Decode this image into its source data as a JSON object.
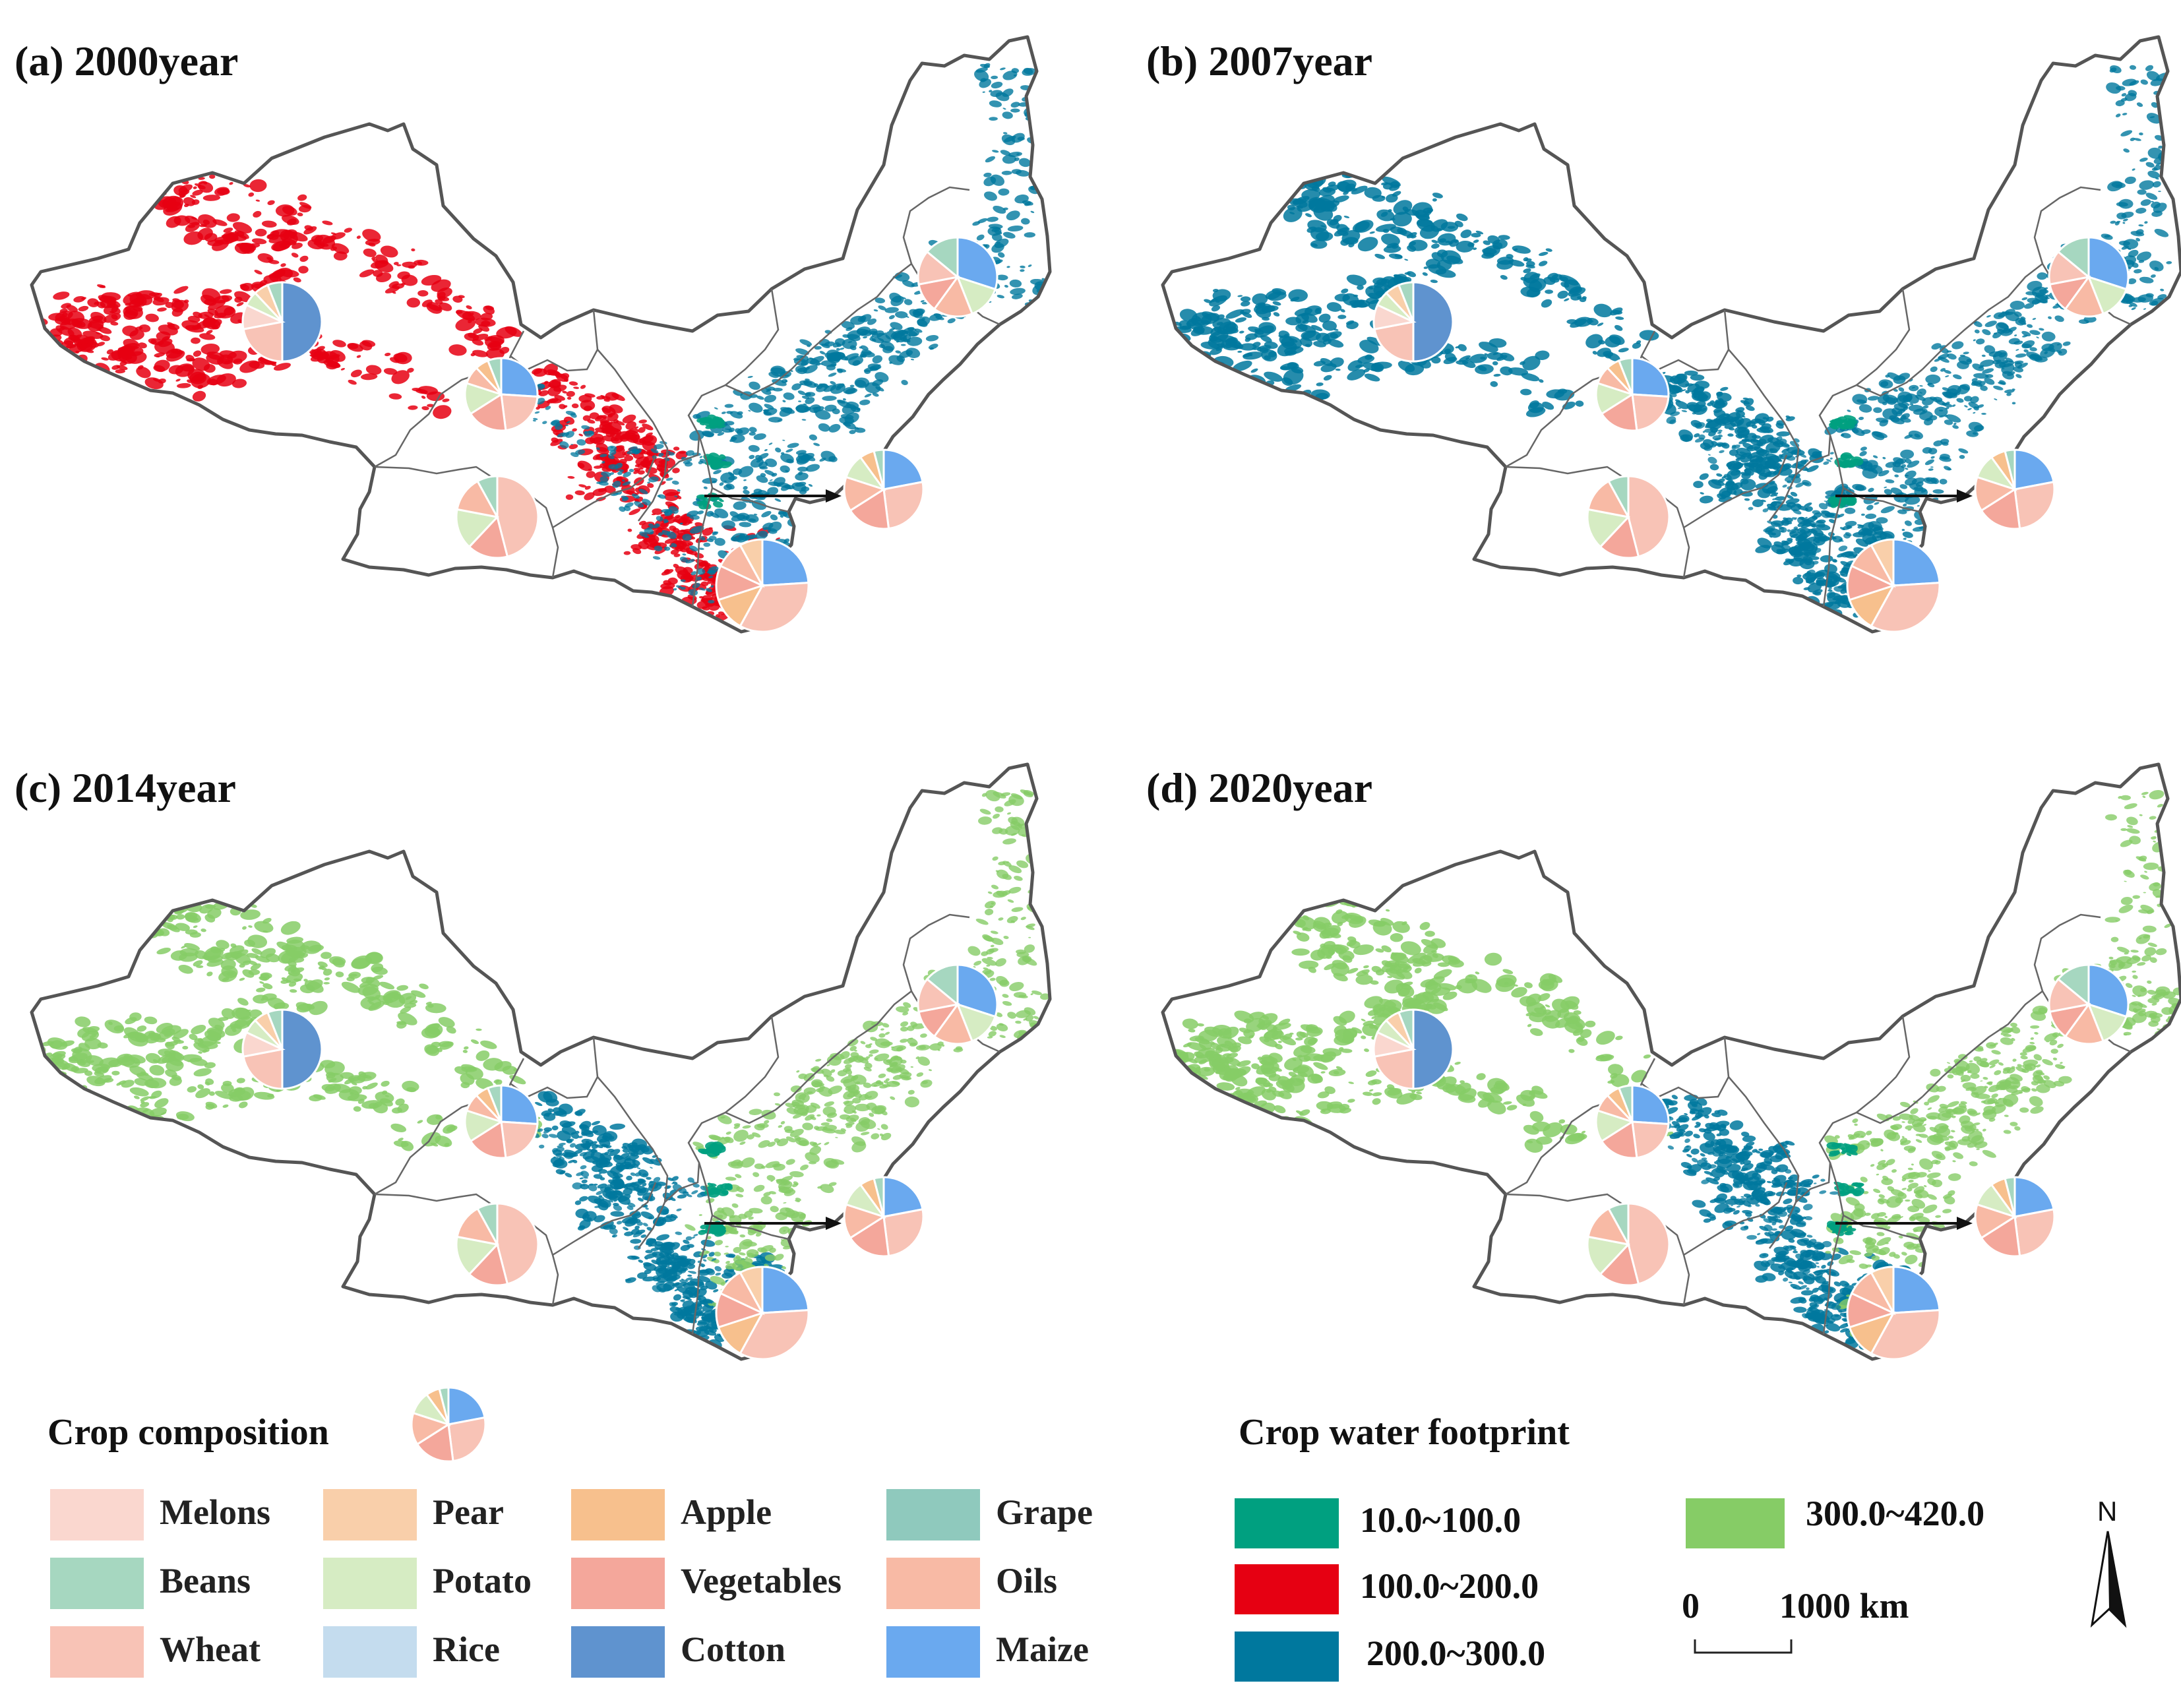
{
  "panels": [
    {
      "title": "(a) 2000year",
      "palette": "red"
    },
    {
      "title": "(b) 2007year",
      "palette": "blue"
    },
    {
      "title": "(c) 2014year",
      "palette": "green"
    },
    {
      "title": "(d) 2020year",
      "palette": "green"
    }
  ],
  "legend": {
    "crop_title": "Crop composition",
    "crops": [
      {
        "label": "Melons",
        "color": "#fad7cf"
      },
      {
        "label": "Pear",
        "color": "#f9cfaa"
      },
      {
        "label": "Apple",
        "color": "#f7c08d"
      },
      {
        "label": "Grape",
        "color": "#8fc9bd"
      },
      {
        "label": "Beans",
        "color": "#a6d7c0"
      },
      {
        "label": "Potato",
        "color": "#d6ecc3"
      },
      {
        "label": "Vegetables",
        "color": "#f4a79b"
      },
      {
        "label": "Oils",
        "color": "#f8baa5"
      },
      {
        "label": "Wheat",
        "color": "#f8c3b6"
      },
      {
        "label": "Rice",
        "color": "#c4dcee"
      },
      {
        "label": "Cotton",
        "color": "#5f93cf"
      },
      {
        "label": "Maize",
        "color": "#6aa9ef"
      }
    ],
    "wf_title": "Crop water footprint",
    "wf_classes": [
      {
        "label": "10.0~100.0",
        "color": "#00a080"
      },
      {
        "label": "300.0~420.0",
        "color": "#86cc66"
      },
      {
        "label": "100.0~200.0",
        "color": "#e60012"
      },
      {
        "label": "200.0~300.0",
        "color": "#00789e"
      }
    ],
    "scale": {
      "zero": "0",
      "distance": "1000 km"
    },
    "north": "N"
  }
}
